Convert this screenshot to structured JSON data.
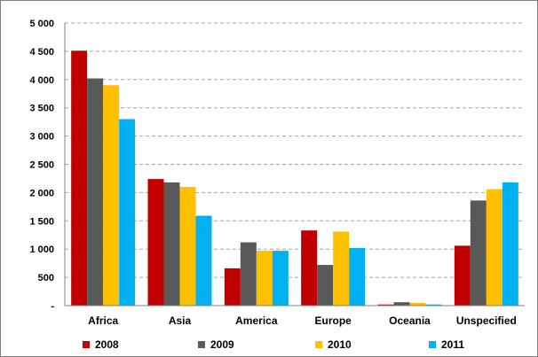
{
  "chart_data": {
    "type": "bar",
    "categories": [
      "Africa",
      "Asia",
      "America",
      "Europe",
      "Oceania",
      "Unspecified"
    ],
    "series": [
      {
        "name": "2008",
        "color": "#c00000",
        "values": [
          4510,
          2240,
          660,
          1330,
          20,
          1060
        ]
      },
      {
        "name": "2009",
        "color": "#595959",
        "values": [
          4020,
          2180,
          1120,
          720,
          60,
          1860
        ]
      },
      {
        "name": "2010",
        "color": "#ffc000",
        "values": [
          3900,
          2100,
          970,
          1310,
          50,
          2060
        ]
      },
      {
        "name": "2011",
        "color": "#00b0f0",
        "values": [
          3300,
          1590,
          970,
          1020,
          20,
          2180
        ]
      }
    ],
    "yticks": [
      {
        "value": 0,
        "label": "-"
      },
      {
        "value": 500,
        "label": "500"
      },
      {
        "value": 1000,
        "label": "1 000"
      },
      {
        "value": 1500,
        "label": "1 500"
      },
      {
        "value": 2000,
        "label": "2 000"
      },
      {
        "value": 2500,
        "label": "2 500"
      },
      {
        "value": 3000,
        "label": "3 000"
      },
      {
        "value": 3500,
        "label": "3 500"
      },
      {
        "value": 4000,
        "label": "4 000"
      },
      {
        "value": 4500,
        "label": "4 500"
      },
      {
        "value": 5000,
        "label": "5 000"
      }
    ],
    "ylim": [
      0,
      5000
    ],
    "grid": "horizontal dashed",
    "legend": "bottom"
  }
}
